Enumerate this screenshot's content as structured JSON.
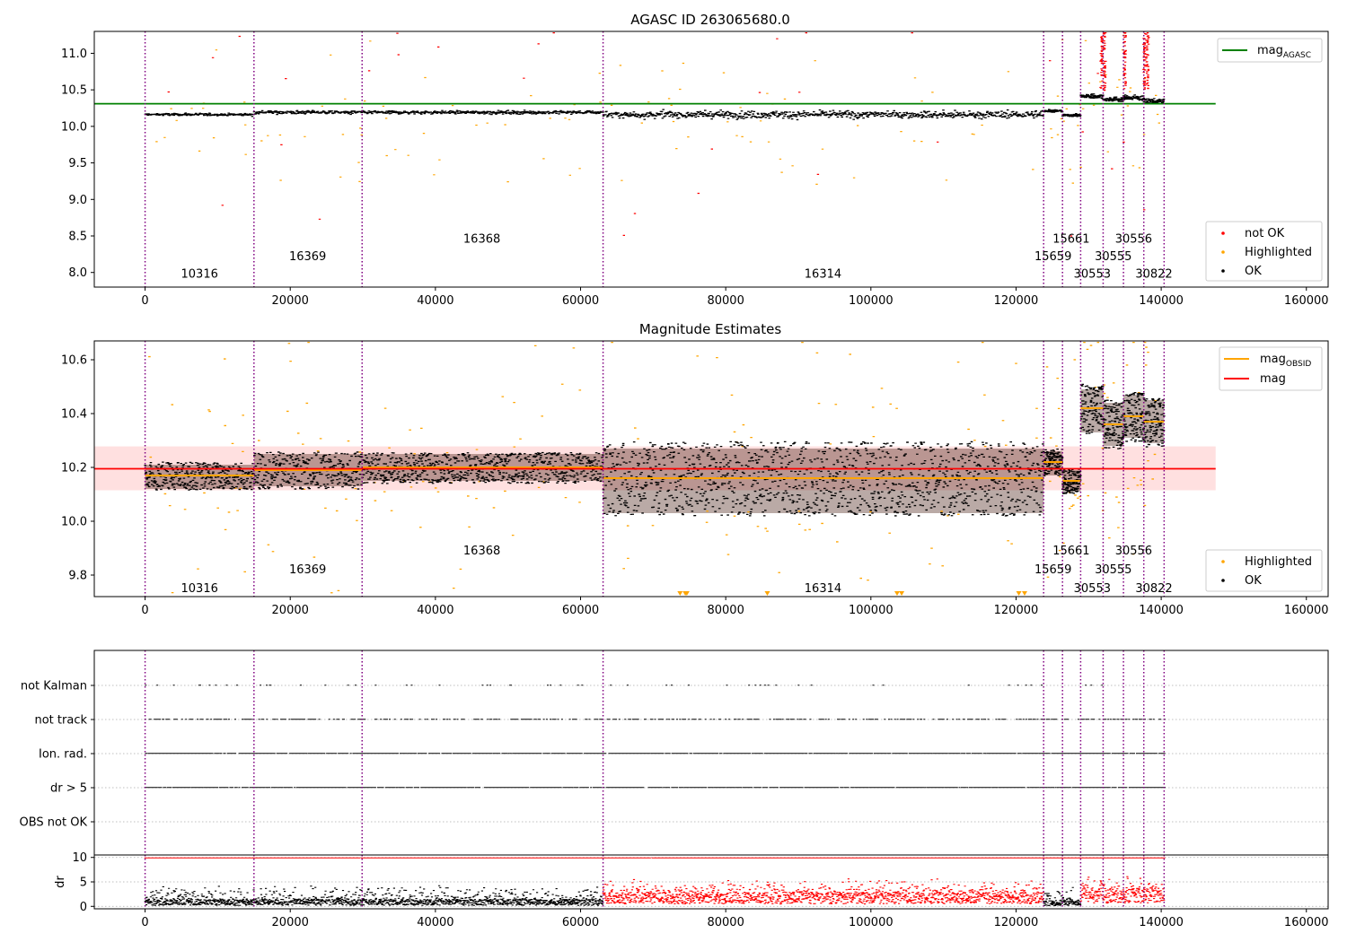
{
  "chart_data": [
    {
      "type": "scatter",
      "title": "AGASC ID 263065680.0",
      "xlim": [
        -7000,
        163000
      ],
      "ylim": [
        7.8,
        11.3
      ],
      "xticks": [
        0,
        20000,
        40000,
        60000,
        80000,
        100000,
        120000,
        140000,
        160000
      ],
      "xtick_labels": [
        "0",
        "20000",
        "40000",
        "60000",
        "80000",
        "100000",
        "120000",
        "140000",
        "160000"
      ],
      "yticks": [
        8.0,
        8.5,
        9.0,
        9.5,
        10.0,
        10.5,
        11.0
      ],
      "ytick_labels": [
        "8.0",
        "8.5",
        "9.0",
        "9.5",
        "10.0",
        "10.5",
        "11.0"
      ],
      "reference_line": {
        "y": 10.31,
        "x_range": [
          -7000,
          147500
        ],
        "color": "#008000"
      },
      "legend_top": {
        "label": "mag",
        "subscript": "AGASC"
      },
      "legend_bottom": [
        "not OK",
        "Highlighted",
        "OK"
      ],
      "segments": [
        {
          "obsid": "10316",
          "start": 0,
          "end": 15000,
          "ok_level": 10.17,
          "ok_spread": 0.03
        },
        {
          "obsid": "16369",
          "start": 15000,
          "end": 29900,
          "ok_level": 10.2,
          "ok_spread": 0.04
        },
        {
          "obsid": "16368",
          "start": 29900,
          "end": 63100,
          "ok_level": 10.2,
          "ok_spread": 0.04
        },
        {
          "obsid": "16314",
          "start": 63100,
          "end": 123800,
          "ok_level": 10.17,
          "ok_spread": 0.09
        },
        {
          "obsid": "15659",
          "start": 123800,
          "end": 126400,
          "ok_level": 10.22,
          "ok_spread": 0.03
        },
        {
          "obsid": "15661",
          "start": 126400,
          "end": 128900,
          "ok_level": 10.16,
          "ok_spread": 0.03
        },
        {
          "obsid": "30553",
          "start": 128900,
          "end": 132000,
          "ok_level": 10.42,
          "ok_spread": 0.06
        },
        {
          "obsid": "30555",
          "start": 132000,
          "end": 134800,
          "ok_level": 10.38,
          "ok_spread": 0.06
        },
        {
          "obsid": "30556",
          "start": 134800,
          "end": 137600,
          "ok_level": 10.4,
          "ok_spread": 0.06
        },
        {
          "obsid": "30822",
          "start": 137600,
          "end": 140400,
          "ok_level": 10.35,
          "ok_spread": 0.06
        }
      ],
      "obsid_labels": [
        {
          "text": "10316",
          "x": 7500,
          "y": 7.98
        },
        {
          "text": "16369",
          "x": 22400,
          "y": 8.22
        },
        {
          "text": "16368",
          "x": 46400,
          "y": 8.46
        },
        {
          "text": "16314",
          "x": 93400,
          "y": 7.98
        },
        {
          "text": "15659",
          "x": 125100,
          "y": 8.22
        },
        {
          "text": "15661",
          "x": 127600,
          "y": 8.46
        },
        {
          "text": "30553",
          "x": 130500,
          "y": 7.98
        },
        {
          "text": "30555",
          "x": 133400,
          "y": 8.22
        },
        {
          "text": "30556",
          "x": 136200,
          "y": 8.46
        },
        {
          "text": "30822",
          "x": 139000,
          "y": 7.98
        }
      ]
    },
    {
      "type": "scatter",
      "title": "Magnitude Estimates",
      "xlim": [
        -7000,
        163000
      ],
      "ylim": [
        9.72,
        10.67
      ],
      "xticks": [
        0,
        20000,
        40000,
        60000,
        80000,
        100000,
        120000,
        140000,
        160000
      ],
      "xtick_labels": [
        "0",
        "20000",
        "40000",
        "60000",
        "80000",
        "100000",
        "120000",
        "140000",
        "160000"
      ],
      "yticks": [
        9.8,
        10.0,
        10.2,
        10.4,
        10.6
      ],
      "ytick_labels": [
        "9.8",
        "10.0",
        "10.2",
        "10.4",
        "10.6"
      ],
      "mag_line": {
        "y": 10.195,
        "band": [
          10.115,
          10.278
        ],
        "x_range": [
          -7000,
          147500
        ],
        "color": "#ff0000"
      },
      "legend_top": [
        {
          "label": "mag",
          "subscript": "OBSID",
          "color": "#ffa500"
        },
        {
          "label": "mag",
          "subscript": "",
          "color": "#ff0000"
        }
      ],
      "legend_bottom": [
        "Highlighted",
        "OK"
      ],
      "obsid_means": [
        {
          "obsid": "10316",
          "mag": 10.17,
          "band": [
            10.12,
            10.21
          ]
        },
        {
          "obsid": "16369",
          "mag": 10.19,
          "band": [
            10.13,
            10.25
          ]
        },
        {
          "obsid": "16368",
          "mag": 10.2,
          "band": [
            10.15,
            10.25
          ]
        },
        {
          "obsid": "16314",
          "mag": 10.16,
          "band": [
            10.03,
            10.27
          ]
        },
        {
          "obsid": "15659",
          "mag": 10.22,
          "band": [
            10.17,
            10.26
          ]
        },
        {
          "obsid": "15661",
          "mag": 10.15,
          "band": [
            10.11,
            10.19
          ]
        },
        {
          "obsid": "30553",
          "mag": 10.42,
          "band": [
            10.33,
            10.49
          ]
        },
        {
          "obsid": "30555",
          "mag": 10.36,
          "band": [
            10.28,
            10.44
          ]
        },
        {
          "obsid": "30556",
          "mag": 10.39,
          "band": [
            10.31,
            10.47
          ]
        },
        {
          "obsid": "30822",
          "mag": 10.37,
          "band": [
            10.29,
            10.45
          ]
        }
      ],
      "obsid_labels": [
        {
          "text": "10316",
          "x": 7500,
          "y": 9.75
        },
        {
          "text": "16369",
          "x": 22400,
          "y": 9.82
        },
        {
          "text": "16368",
          "x": 46400,
          "y": 9.89
        },
        {
          "text": "16314",
          "x": 93400,
          "y": 9.75
        },
        {
          "text": "15659",
          "x": 125100,
          "y": 9.82
        },
        {
          "text": "15661",
          "x": 127600,
          "y": 9.89
        },
        {
          "text": "30553",
          "x": 130500,
          "y": 9.75
        },
        {
          "text": "30555",
          "x": 133400,
          "y": 9.82
        },
        {
          "text": "30556",
          "x": 136200,
          "y": 9.89
        },
        {
          "text": "30822",
          "x": 139000,
          "y": 9.75
        }
      ]
    },
    {
      "type": "scatter",
      "title": "",
      "xlim": [
        -7000,
        163000
      ],
      "categories": [
        "not Kalman",
        "not track",
        "Ion. rad.",
        "dr > 5",
        "OBS not OK"
      ],
      "flag_coverage": [
        {
          "flag": "not Kalman",
          "density": "sparse"
        },
        {
          "flag": "not track",
          "density": "medium"
        },
        {
          "flag": "Ion. rad.",
          "density": "dense"
        },
        {
          "flag": "dr > 5",
          "density": "dense"
        },
        {
          "flag": "OBS not OK",
          "density": "none"
        }
      ]
    },
    {
      "type": "scatter",
      "title": "",
      "xlim": [
        -7000,
        163000
      ],
      "ylim": [
        -0.5,
        10.5
      ],
      "ylabel": "dr",
      "xticks": [
        0,
        20000,
        40000,
        60000,
        80000,
        100000,
        120000,
        140000,
        160000
      ],
      "xtick_labels": [
        "0",
        "20000",
        "40000",
        "60000",
        "80000",
        "100000",
        "120000",
        "140000",
        "160000"
      ],
      "yticks": [
        0,
        5,
        10
      ],
      "ytick_labels": [
        "0",
        "5",
        "10"
      ],
      "dr_levels": [
        {
          "start": 0,
          "end": 63100,
          "typical": 1.0,
          "color": "#000000"
        },
        {
          "start": 63100,
          "end": 123800,
          "typical": 2.0,
          "color": "#ff0000"
        },
        {
          "start": 123800,
          "end": 128900,
          "typical": 0.8,
          "color": "#000000"
        },
        {
          "start": 128900,
          "end": 140400,
          "typical": 2.5,
          "color": "#ff0000"
        }
      ],
      "clip_value": 10
    }
  ],
  "obsid_boundaries": [
    0,
    15000,
    29900,
    63100,
    123800,
    126400,
    128900,
    132000,
    134800,
    137600,
    140400
  ],
  "colors": {
    "ok": "#000000",
    "highlighted": "#ffa500",
    "not_ok": "#ff0000",
    "agasc_line": "#008000",
    "boundary": "#800080",
    "band": "#ffd6d6"
  }
}
